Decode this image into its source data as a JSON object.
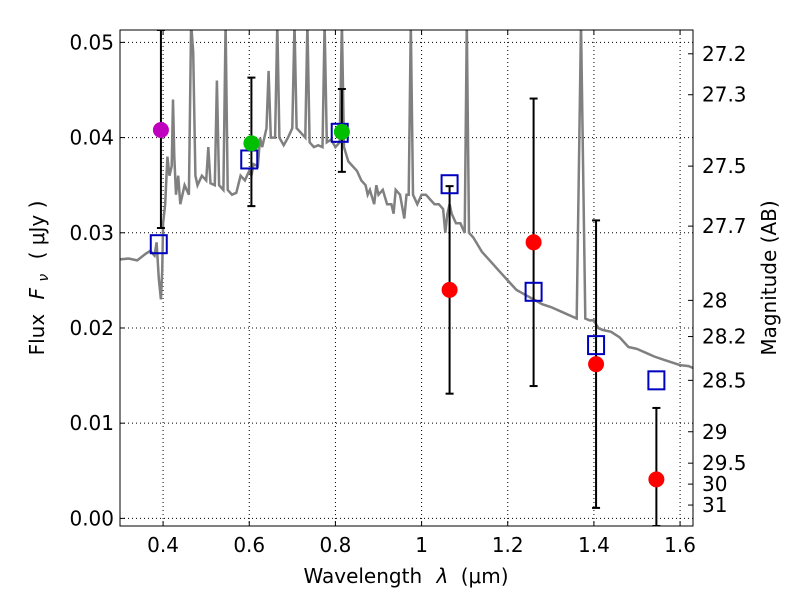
{
  "chart_data": {
    "type": "scatter",
    "xlabel_text": "Wavelength",
    "xlabel_symbol": "λ",
    "xlabel_unit": "(μm)",
    "ylabel_text": "Flux",
    "ylabel_symbol": "F",
    "ylabel_subscript": "ν",
    "ylabel_unit": "( μJy )",
    "y2label": "Magnitude (AB)",
    "xlim": [
      0.3,
      1.63
    ],
    "ylim": [
      -0.0008,
      0.0513
    ],
    "grid": true,
    "xticks": [
      {
        "value": 0.4,
        "label": "0.4"
      },
      {
        "value": 0.6,
        "label": "0.6"
      },
      {
        "value": 0.8,
        "label": "0.8"
      },
      {
        "value": 1.0,
        "label": "1"
      },
      {
        "value": 1.2,
        "label": "1.2"
      },
      {
        "value": 1.4,
        "label": "1.4"
      },
      {
        "value": 1.6,
        "label": "1.6"
      }
    ],
    "yticks": [
      {
        "value": 0.0,
        "label": "0.00"
      },
      {
        "value": 0.01,
        "label": "0.01"
      },
      {
        "value": 0.02,
        "label": "0.02"
      },
      {
        "value": 0.03,
        "label": "0.03"
      },
      {
        "value": 0.04,
        "label": "0.04"
      },
      {
        "value": 0.05,
        "label": "0.05"
      }
    ],
    "y2ticks": [
      {
        "flux": 0.0488,
        "label": "27.2"
      },
      {
        "flux": 0.0445,
        "label": "27.3"
      },
      {
        "flux": 0.037,
        "label": "27.5"
      },
      {
        "flux": 0.0307,
        "label": "27.7"
      },
      {
        "flux": 0.0229,
        "label": "28"
      },
      {
        "flux": 0.0191,
        "label": "28.2"
      },
      {
        "flux": 0.0145,
        "label": "28.5"
      },
      {
        "flux": 0.0091,
        "label": "29"
      },
      {
        "flux": 0.0058,
        "label": "29.5"
      },
      {
        "flux": 0.0036,
        "label": "30"
      },
      {
        "flux": 0.0014,
        "label": "31"
      }
    ],
    "sed_model": {
      "color": "#808080",
      "points": [
        [
          0.3,
          0.0272
        ],
        [
          0.32,
          0.0273
        ],
        [
          0.34,
          0.0271
        ],
        [
          0.36,
          0.0278
        ],
        [
          0.37,
          0.0281
        ],
        [
          0.38,
          0.0276
        ],
        [
          0.385,
          0.029
        ],
        [
          0.39,
          0.0252
        ],
        [
          0.395,
          0.023
        ],
        [
          0.398,
          0.026
        ],
        [
          0.4,
          0.031
        ],
        [
          0.405,
          0.033
        ],
        [
          0.41,
          0.038
        ],
        [
          0.415,
          0.036
        ],
        [
          0.42,
          0.037
        ],
        [
          0.423,
          0.044
        ],
        [
          0.426,
          0.038
        ],
        [
          0.43,
          0.034
        ],
        [
          0.435,
          0.036
        ],
        [
          0.44,
          0.033
        ],
        [
          0.45,
          0.035
        ],
        [
          0.46,
          0.034
        ],
        [
          0.465,
          0.052
        ],
        [
          0.47,
          0.049
        ],
        [
          0.475,
          0.036
        ],
        [
          0.48,
          0.035
        ],
        [
          0.49,
          0.036
        ],
        [
          0.5,
          0.0355
        ],
        [
          0.505,
          0.039
        ],
        [
          0.51,
          0.0352
        ],
        [
          0.52,
          0.035
        ],
        [
          0.525,
          0.046
        ],
        [
          0.53,
          0.035
        ],
        [
          0.54,
          0.0345
        ],
        [
          0.545,
          0.052
        ],
        [
          0.55,
          0.0345
        ],
        [
          0.56,
          0.034
        ],
        [
          0.57,
          0.0342
        ],
        [
          0.58,
          0.036
        ],
        [
          0.59,
          0.0355
        ],
        [
          0.6,
          0.0365
        ],
        [
          0.605,
          0.036
        ],
        [
          0.61,
          0.0372
        ],
        [
          0.62,
          0.037
        ],
        [
          0.625,
          0.04
        ],
        [
          0.63,
          0.039
        ],
        [
          0.64,
          0.041
        ],
        [
          0.645,
          0.047
        ],
        [
          0.65,
          0.04
        ],
        [
          0.66,
          0.04
        ],
        [
          0.665,
          0.052
        ],
        [
          0.67,
          0.04
        ],
        [
          0.68,
          0.0392
        ],
        [
          0.69,
          0.04
        ],
        [
          0.7,
          0.041
        ],
        [
          0.705,
          0.052
        ],
        [
          0.71,
          0.041
        ],
        [
          0.72,
          0.0405
        ],
        [
          0.73,
          0.04
        ],
        [
          0.735,
          0.052
        ],
        [
          0.74,
          0.0395
        ],
        [
          0.75,
          0.039
        ],
        [
          0.76,
          0.0392
        ],
        [
          0.77,
          0.039
        ],
        [
          0.775,
          0.052
        ],
        [
          0.78,
          0.0395
        ],
        [
          0.79,
          0.0398
        ],
        [
          0.8,
          0.039
        ],
        [
          0.81,
          0.0395
        ],
        [
          0.815,
          0.052
        ],
        [
          0.82,
          0.039
        ],
        [
          0.83,
          0.0375
        ],
        [
          0.84,
          0.037
        ],
        [
          0.85,
          0.0365
        ],
        [
          0.86,
          0.0355
        ],
        [
          0.87,
          0.035
        ],
        [
          0.875,
          0.034
        ],
        [
          0.88,
          0.0345
        ],
        [
          0.89,
          0.033
        ],
        [
          0.895,
          0.035
        ],
        [
          0.9,
          0.034
        ],
        [
          0.91,
          0.0345
        ],
        [
          0.92,
          0.033
        ],
        [
          0.93,
          0.033
        ],
        [
          0.935,
          0.032
        ],
        [
          0.94,
          0.0345
        ],
        [
          0.95,
          0.034
        ],
        [
          0.96,
          0.0315
        ],
        [
          0.965,
          0.034
        ],
        [
          0.97,
          0.034
        ],
        [
          0.975,
          0.052
        ],
        [
          0.98,
          0.034
        ],
        [
          0.99,
          0.033
        ],
        [
          1.0,
          0.034
        ],
        [
          1.01,
          0.034
        ],
        [
          1.02,
          0.0335
        ],
        [
          1.03,
          0.033
        ],
        [
          1.04,
          0.033
        ],
        [
          1.05,
          0.0325
        ],
        [
          1.055,
          0.03
        ],
        [
          1.06,
          0.032
        ],
        [
          1.065,
          0.033
        ],
        [
          1.07,
          0.032
        ],
        [
          1.08,
          0.031
        ],
        [
          1.09,
          0.031
        ],
        [
          1.1,
          0.03
        ],
        [
          1.105,
          0.052
        ],
        [
          1.11,
          0.03
        ],
        [
          1.12,
          0.0295
        ],
        [
          1.14,
          0.028
        ],
        [
          1.16,
          0.027
        ],
        [
          1.18,
          0.026
        ],
        [
          1.2,
          0.025
        ],
        [
          1.22,
          0.024
        ],
        [
          1.24,
          0.0235
        ],
        [
          1.26,
          0.023
        ],
        [
          1.28,
          0.0225
        ],
        [
          1.3,
          0.0222
        ],
        [
          1.32,
          0.0218
        ],
        [
          1.34,
          0.0214
        ],
        [
          1.36,
          0.021
        ],
        [
          1.37,
          0.052
        ],
        [
          1.38,
          0.021
        ],
        [
          1.39,
          0.0208
        ],
        [
          1.4,
          0.0208
        ],
        [
          1.41,
          0.02
        ],
        [
          1.42,
          0.0198
        ],
        [
          1.44,
          0.0196
        ],
        [
          1.46,
          0.019
        ],
        [
          1.48,
          0.018
        ],
        [
          1.5,
          0.0178
        ],
        [
          1.52,
          0.0174
        ],
        [
          1.54,
          0.017
        ],
        [
          1.56,
          0.0167
        ],
        [
          1.58,
          0.0164
        ],
        [
          1.6,
          0.0161
        ],
        [
          1.62,
          0.016
        ],
        [
          1.63,
          0.0158
        ]
      ]
    },
    "series": [
      {
        "name": "observed-detections",
        "marker": "circle",
        "points": [
          {
            "x": 0.395,
            "y": 0.0408,
            "color": "#bf00bf",
            "err_low": 0.0305,
            "err_high": 0.0513
          },
          {
            "x": 0.605,
            "y": 0.0394,
            "color": "#00bf00",
            "err_low": 0.0328,
            "err_high": 0.0463
          },
          {
            "x": 0.815,
            "y": 0.0406,
            "color": "#00bf00",
            "err_low": 0.0364,
            "err_high": 0.0451
          },
          {
            "x": 1.065,
            "y": 0.024,
            "color": "#ff0000",
            "err_low": 0.0131,
            "err_high": 0.0349
          },
          {
            "x": 1.26,
            "y": 0.029,
            "color": "#ff0000",
            "err_low": 0.0139,
            "err_high": 0.0441
          },
          {
            "x": 1.405,
            "y": 0.0162,
            "color": "#ff0000",
            "err_low": 0.0011,
            "err_high": 0.0313
          },
          {
            "x": 1.545,
            "y": 0.0041,
            "color": "#ff0000",
            "err_low": -0.0008,
            "err_high": 0.0116
          }
        ]
      },
      {
        "name": "model-photometry",
        "marker": "open-square",
        "color": "#0000bf",
        "points": [
          {
            "x": 0.39,
            "y": 0.0288
          },
          {
            "x": 0.6,
            "y": 0.0377
          },
          {
            "x": 0.81,
            "y": 0.0405
          },
          {
            "x": 1.065,
            "y": 0.0351
          },
          {
            "x": 1.26,
            "y": 0.0238
          },
          {
            "x": 1.405,
            "y": 0.0182
          },
          {
            "x": 1.545,
            "y": 0.0145
          }
        ]
      }
    ]
  }
}
